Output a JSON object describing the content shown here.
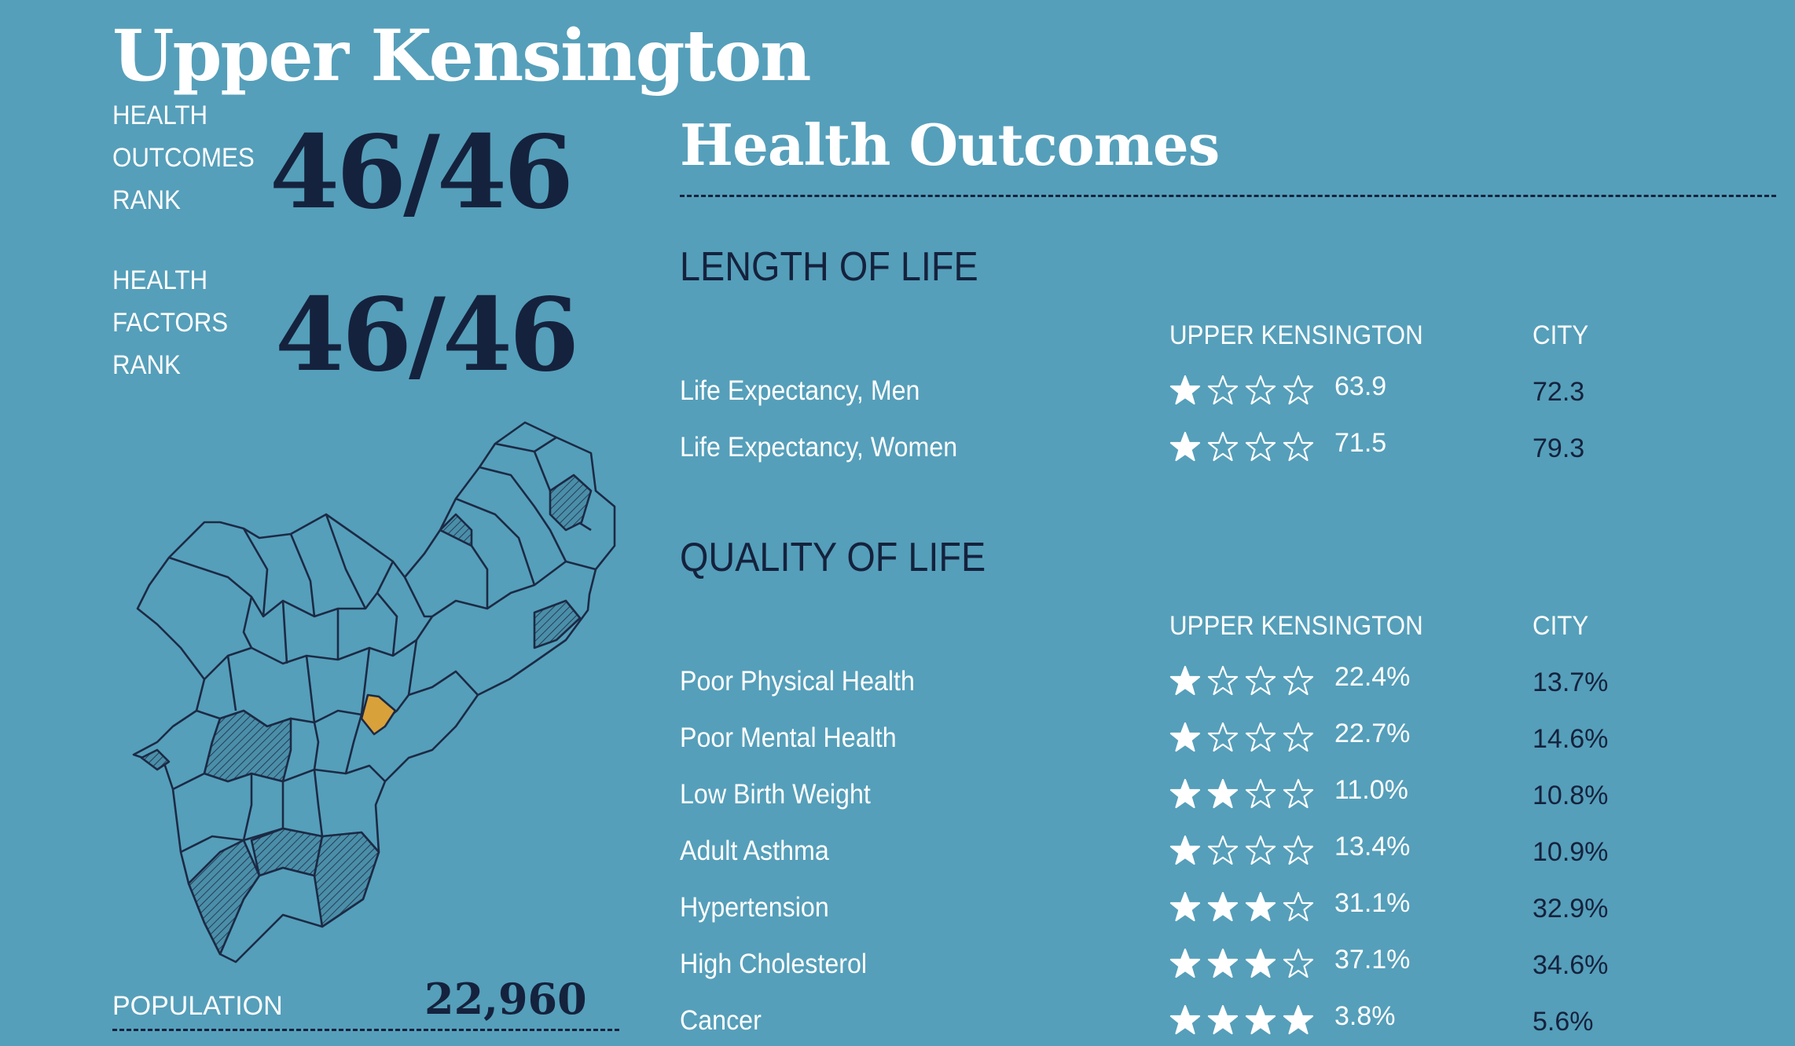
{
  "neighborhood": "Upper Kensington",
  "ranks": {
    "outcomes": {
      "label_lines": [
        "HEALTH",
        "OUTCOMES",
        "RANK"
      ],
      "value": "46/46"
    },
    "factors": {
      "label_lines": [
        "HEALTH",
        "FACTORS",
        "RANK"
      ],
      "value": "46/46"
    }
  },
  "population": {
    "label": "POPULATION",
    "value": "22,960"
  },
  "map": {
    "highlight_color": "#d9a13a",
    "line_color": "#1c2a45",
    "fill_color": "#559fba"
  },
  "section_title": "Health Outcomes",
  "length_of_life": {
    "heading": "LENGTH OF LIFE",
    "col_area": "UPPER KENSINGTON",
    "col_city": "CITY",
    "rows": [
      {
        "label": "Life Expectancy, Men",
        "stars": 1,
        "value": "63.9",
        "city": "72.3"
      },
      {
        "label": "Life Expectancy, Women",
        "stars": 1,
        "value": "71.5",
        "city": "79.3"
      }
    ]
  },
  "quality_of_life": {
    "heading": "QUALITY OF LIFE",
    "col_area": "UPPER KENSINGTON",
    "col_city": "CITY",
    "rows": [
      {
        "label": "Poor Physical Health",
        "stars": 1,
        "value": "22.4%",
        "city": "13.7%"
      },
      {
        "label": "Poor Mental Health",
        "stars": 1,
        "value": "22.7%",
        "city": "14.6%"
      },
      {
        "label": "Low Birth Weight",
        "stars": 2,
        "value": "11.0%",
        "city": "10.8%"
      },
      {
        "label": "Adult Asthma",
        "stars": 1,
        "value": "13.4%",
        "city": "10.9%"
      },
      {
        "label": "Hypertension",
        "stars": 3,
        "value": "31.1%",
        "city": "32.9%"
      },
      {
        "label": "High Cholesterol",
        "stars": 3,
        "value": "37.1%",
        "city": "34.6%"
      },
      {
        "label": "Cancer",
        "stars": 4,
        "value": "3.8%",
        "city": "5.6%"
      }
    ]
  },
  "colors": {
    "background": "#559fba",
    "dark": "#15223d",
    "text": "#ffffff"
  }
}
